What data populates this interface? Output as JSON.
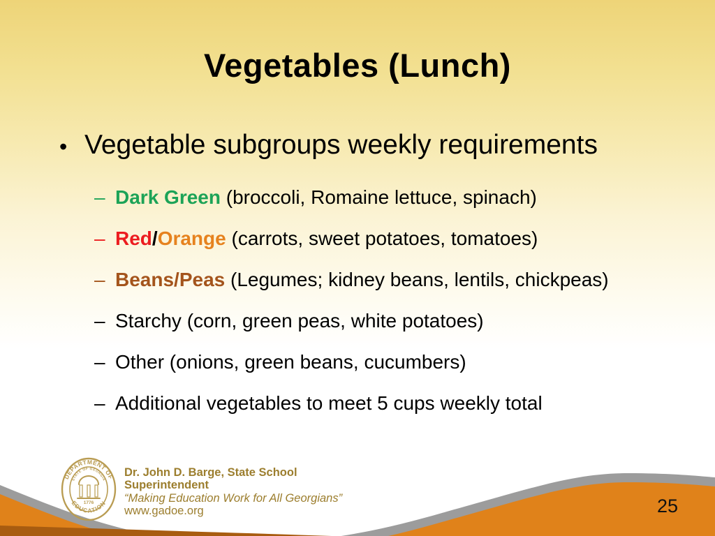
{
  "slide": {
    "title": "Vegetables (Lunch)",
    "main_bullet": {
      "marker": "•",
      "text": "Vegetable subgroups weekly requirements"
    },
    "sub_bullets": [
      {
        "prefix": "–",
        "prefix_color": "#1CA357",
        "segments": [
          {
            "text": "Dark Green",
            "color": "#1CA357",
            "bold": true
          },
          {
            "text": " (broccoli, Romaine lettuce, spinach)",
            "color": "#000000",
            "bold": false
          }
        ]
      },
      {
        "prefix": "–",
        "prefix_color": "#EC1C1F",
        "segments": [
          {
            "text": "Red",
            "color": "#EC1C1F",
            "bold": true
          },
          {
            "text": "/",
            "color": "#000000",
            "bold": true
          },
          {
            "text": "Orange",
            "color": "#E6821E",
            "bold": true
          },
          {
            "text": " (carrots, sweet potatoes, tomatoes)",
            "color": "#000000",
            "bold": false
          }
        ]
      },
      {
        "prefix": "–",
        "prefix_color": "#A4541C",
        "segments": [
          {
            "text": "Beans/Peas",
            "color": "#A4541C",
            "bold": true
          },
          {
            "text": " (Legumes; kidney beans, lentils, chickpeas)",
            "color": "#000000",
            "bold": false
          }
        ]
      },
      {
        "prefix": "–",
        "prefix_color": "#000000",
        "segments": [
          {
            "text": "Starchy (corn, green peas, white potatoes)",
            "color": "#000000",
            "bold": false
          }
        ]
      },
      {
        "prefix": "–",
        "prefix_color": "#000000",
        "segments": [
          {
            "text": "Other (onions, green beans, cucumbers)",
            "color": "#000000",
            "bold": false
          }
        ]
      },
      {
        "prefix": "–",
        "prefix_color": "#000000",
        "segments": [
          {
            "text": "Additional vegetables to meet 5 cups weekly total",
            "color": "#000000",
            "bold": false
          }
        ]
      }
    ],
    "footer": {
      "superintendent_line1": "Dr. John D. Barge, State School",
      "superintendent_line2": "Superintendent",
      "tagline": "“Making Education Work for All Georgians”",
      "website": "www.gadoe.org",
      "text_color": "#9C7E2E",
      "seal": {
        "top_text": "DEPARTMENT OF",
        "bottom_text": "EDUCATION",
        "inner_text": "STATE OF GEORGIA",
        "year": "1776",
        "color": "#B99C52"
      }
    },
    "page_number": "25",
    "colors": {
      "wave_gray": "#9C9C9C",
      "wave_orange": "#E0821A",
      "wave_dark_orange": "#A85C10"
    }
  }
}
